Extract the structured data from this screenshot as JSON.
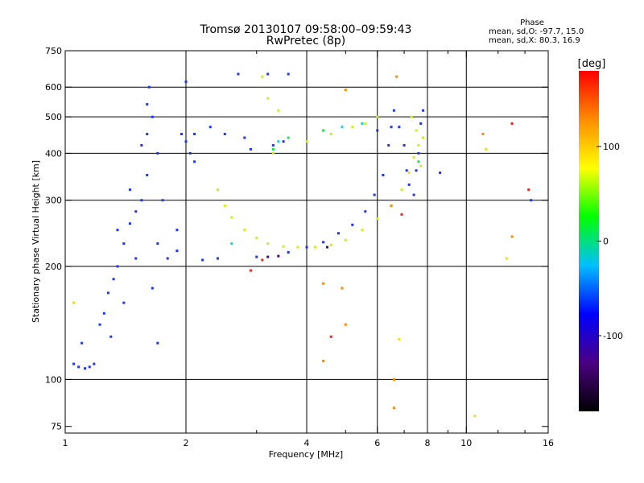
{
  "header": {
    "title_line1": "Tromsø 20130107 09:58:00–09:59:43",
    "title_line2": "RwPretec (8p)",
    "phase_title": "Phase",
    "phase_line1": "mean, sd,O: -97.7, 15.0",
    "phase_line2": "mean, sd,X: 80.3, 16.9"
  },
  "colorbar": {
    "unit_label": "[deg]",
    "range": [
      -180,
      180
    ],
    "ticks": [
      {
        "value": 100,
        "label": "100"
      },
      {
        "value": 0,
        "label": "0"
      },
      {
        "value": -100,
        "label": "-100"
      }
    ],
    "colors": [
      "#000000",
      "#4b0082",
      "#0000ff",
      "#00bfff",
      "#00ff00",
      "#ffff00",
      "#ff8c00",
      "#ff0000"
    ]
  },
  "chart_data": {
    "type": "scatter",
    "title": "Tromsø 20130107 09:58:00–09:59:43",
    "subtitle": "RwPretec (8p)",
    "xlabel": "Frequency [MHz]",
    "ylabel": "Stationary phase Virtual Height [km]",
    "xscale": "log",
    "yscale": "log",
    "xlim": [
      1,
      16
    ],
    "ylim": [
      72,
      750
    ],
    "grid": true,
    "x_ticks": [
      {
        "value": 1,
        "label": "1"
      },
      {
        "value": 2,
        "label": "2"
      },
      {
        "value": 4,
        "label": "4"
      },
      {
        "value": 6,
        "label": "6"
      },
      {
        "value": 8,
        "label": "8"
      },
      {
        "value": 10,
        "label": "10"
      },
      {
        "value": 16,
        "label": "16"
      }
    ],
    "x_minor_ticks": [
      3,
      5,
      7,
      9,
      12,
      14
    ],
    "y_ticks": [
      {
        "value": 75,
        "label": "75"
      },
      {
        "value": 100,
        "label": "100"
      },
      {
        "value": 200,
        "label": "200"
      },
      {
        "value": 300,
        "label": "300"
      },
      {
        "value": 400,
        "label": "400"
      },
      {
        "value": 500,
        "label": "500"
      },
      {
        "value": 600,
        "label": "600"
      },
      {
        "value": 750,
        "label": "750"
      }
    ],
    "x_gridlines": [
      2,
      4,
      6,
      8,
      10
    ],
    "y_gridlines": [
      100,
      200,
      300,
      400,
      500,
      600
    ],
    "series": [
      {
        "color": "#2233ee",
        "points": [
          [
            1.05,
            110
          ],
          [
            1.08,
            108
          ],
          [
            1.12,
            107
          ],
          [
            1.15,
            108
          ],
          [
            1.18,
            110
          ],
          [
            1.22,
            140
          ],
          [
            1.28,
            170
          ],
          [
            1.32,
            185
          ],
          [
            1.35,
            200
          ],
          [
            1.4,
            230
          ],
          [
            1.45,
            260
          ],
          [
            1.5,
            280
          ],
          [
            1.55,
            300
          ],
          [
            1.6,
            350
          ],
          [
            1.6,
            450
          ],
          [
            1.62,
            600
          ],
          [
            1.65,
            500
          ],
          [
            1.7,
            400
          ],
          [
            1.7,
            230
          ],
          [
            1.75,
            300
          ],
          [
            1.8,
            210
          ],
          [
            1.9,
            250
          ],
          [
            1.95,
            450
          ],
          [
            2.0,
            430
          ],
          [
            2.0,
            620
          ],
          [
            2.05,
            400
          ],
          [
            2.1,
            450
          ],
          [
            2.2,
            208
          ],
          [
            2.4,
            210
          ],
          [
            2.5,
            450
          ],
          [
            2.7,
            650
          ],
          [
            2.8,
            440
          ],
          [
            3.0,
            212
          ],
          [
            3.2,
            650
          ],
          [
            3.5,
            430
          ],
          [
            3.6,
            218
          ],
          [
            3.6,
            650
          ],
          [
            4.0,
            225
          ],
          [
            4.4,
            232
          ],
          [
            4.8,
            245
          ],
          [
            5.2,
            258
          ],
          [
            5.6,
            280
          ],
          [
            5.9,
            310
          ],
          [
            6.0,
            460
          ],
          [
            6.2,
            350
          ],
          [
            6.4,
            420
          ],
          [
            6.5,
            470
          ],
          [
            6.6,
            520
          ],
          [
            6.8,
            470
          ],
          [
            7.0,
            420
          ],
          [
            7.1,
            360
          ],
          [
            7.2,
            330
          ],
          [
            7.4,
            310
          ],
          [
            7.5,
            360
          ],
          [
            7.6,
            400
          ],
          [
            7.7,
            480
          ],
          [
            7.8,
            520
          ],
          [
            1.3,
            130
          ],
          [
            1.7,
            125
          ],
          [
            8.6,
            355
          ],
          [
            14.5,
            300
          ],
          [
            1.9,
            220
          ],
          [
            2.1,
            380
          ],
          [
            2.3,
            470
          ],
          [
            2.9,
            410
          ],
          [
            3.3,
            420
          ],
          [
            1.65,
            175
          ],
          [
            1.5,
            210
          ],
          [
            1.45,
            320
          ],
          [
            1.55,
            420
          ],
          [
            1.6,
            540
          ],
          [
            1.4,
            160
          ],
          [
            1.25,
            150
          ],
          [
            1.1,
            125
          ],
          [
            1.35,
            250
          ]
        ]
      },
      {
        "color": "#ccee22",
        "points": [
          [
            2.4,
            320
          ],
          [
            2.5,
            290
          ],
          [
            2.6,
            270
          ],
          [
            2.8,
            250
          ],
          [
            3.0,
            238
          ],
          [
            3.2,
            230
          ],
          [
            3.5,
            226
          ],
          [
            3.8,
            225
          ],
          [
            4.2,
            225
          ],
          [
            4.6,
            228
          ],
          [
            5.0,
            235
          ],
          [
            5.5,
            250
          ],
          [
            6.0,
            268
          ],
          [
            6.5,
            290
          ],
          [
            6.9,
            320
          ],
          [
            7.2,
            355
          ],
          [
            7.4,
            390
          ],
          [
            7.6,
            420
          ],
          [
            7.8,
            440
          ],
          [
            7.7,
            370
          ],
          [
            7.5,
            460
          ],
          [
            7.3,
            500
          ],
          [
            3.2,
            560
          ],
          [
            3.4,
            520
          ],
          [
            3.3,
            400
          ],
          [
            4.0,
            430
          ],
          [
            4.6,
            450
          ],
          [
            5.2,
            470
          ],
          [
            5.6,
            480
          ],
          [
            6.0,
            500
          ],
          [
            3.1,
            640
          ]
        ]
      },
      {
        "color": "#22dd55",
        "points": [
          [
            3.6,
            440
          ],
          [
            4.4,
            460
          ],
          [
            3.3,
            410
          ],
          [
            7.6,
            380
          ]
        ]
      },
      {
        "color": "#22cccc",
        "points": [
          [
            3.4,
            430
          ],
          [
            4.9,
            470
          ],
          [
            2.6,
            230
          ],
          [
            5.5,
            480
          ]
        ]
      },
      {
        "color": "#ff8800",
        "points": [
          [
            5.0,
            590
          ],
          [
            4.4,
            180
          ],
          [
            4.4,
            112
          ],
          [
            6.5,
            290
          ],
          [
            6.6,
            100
          ],
          [
            6.6,
            84
          ],
          [
            6.7,
            640
          ],
          [
            13.0,
            240
          ],
          [
            11.0,
            450
          ],
          [
            4.9,
            175
          ],
          [
            5.0,
            140
          ]
        ]
      },
      {
        "color": "#ee2222",
        "points": [
          [
            13.0,
            480
          ],
          [
            14.3,
            320
          ],
          [
            4.6,
            130
          ],
          [
            6.9,
            275
          ],
          [
            2.9,
            195
          ],
          [
            3.1,
            208
          ]
        ]
      },
      {
        "color": "#440099",
        "points": [
          [
            3.2,
            212
          ],
          [
            4.5,
            225
          ],
          [
            3.4,
            213
          ]
        ]
      },
      {
        "color": "#eedd22",
        "points": [
          [
            10.5,
            80
          ],
          [
            12.6,
            210
          ],
          [
            11.2,
            410
          ],
          [
            1.05,
            160
          ],
          [
            6.8,
            128
          ]
        ]
      }
    ]
  }
}
